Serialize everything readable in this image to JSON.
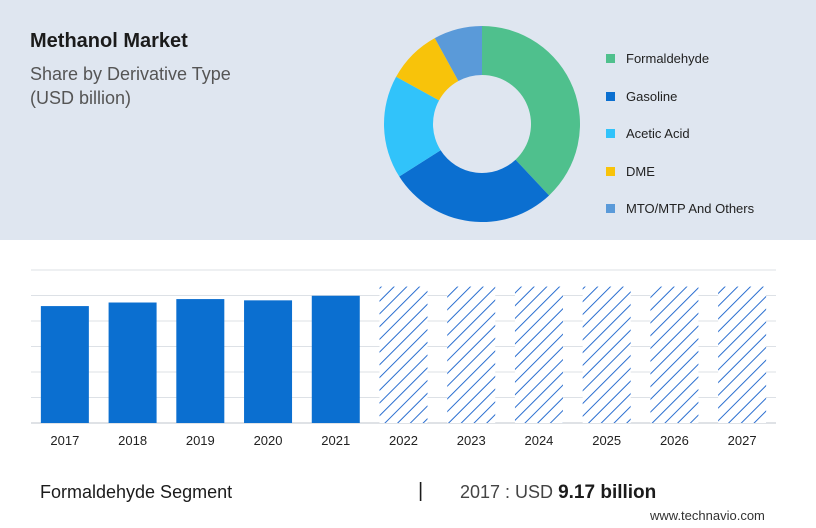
{
  "header": {
    "title": "Methanol Market",
    "subtitle": "Share by Derivative Type\n(USD billion)"
  },
  "chart_data": [
    {
      "type": "pie",
      "style": "donut",
      "legend_position": "right",
      "series": [
        {
          "name": "Formaldehyde",
          "value": 38,
          "color": "#4fc08d"
        },
        {
          "name": "Gasoline",
          "value": 28,
          "color": "#0b6fd0"
        },
        {
          "name": "Acetic Acid",
          "value": 17,
          "color": "#31c3fa"
        },
        {
          "name": "DME",
          "value": 9,
          "color": "#f8c30a"
        },
        {
          "name": "MTO/MTP And Others",
          "value": 8,
          "color": "#5a9ad9"
        }
      ]
    },
    {
      "type": "bar",
      "categories": [
        "2017",
        "2018",
        "2019",
        "2020",
        "2021",
        "2022",
        "2023",
        "2024",
        "2025",
        "2026",
        "2027"
      ],
      "values": [
        9.17,
        9.45,
        9.72,
        9.62,
        9.98,
        10.7,
        10.7,
        10.7,
        10.7,
        10.7,
        10.7
      ],
      "forecast_from_index": 5,
      "ylim": [
        0,
        12
      ],
      "grid": true,
      "color": "#0b6fd0",
      "forecast_color": "#2b6fd0"
    }
  ],
  "footer": {
    "segment_label": "Formaldehyde Segment",
    "separator": "|",
    "value_prefix": "2017 : USD",
    "value_bold": "9.17 billion",
    "watermark": "www.technavio.com"
  }
}
